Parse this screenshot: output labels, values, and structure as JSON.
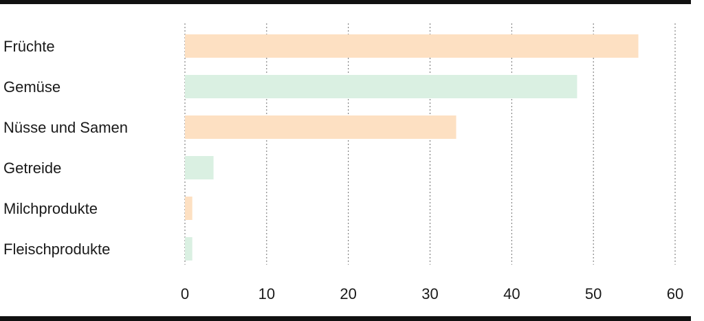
{
  "chart_data": {
    "type": "bar",
    "orientation": "horizontal",
    "categories": [
      "Früchte",
      "Gemüse",
      "Nüsse und Samen",
      "Getreide",
      "Milchprodukte",
      "Fleischprodukte"
    ],
    "values": [
      55.5,
      48,
      33.2,
      3.5,
      0.9,
      0.9
    ],
    "bar_colors": [
      "#fde0c2",
      "#daf0e2",
      "#fde0c2",
      "#daf0e2",
      "#fde0c2",
      "#daf0e2"
    ],
    "xlim": [
      0,
      60
    ],
    "xticks": [
      "0",
      "10",
      "20",
      "30",
      "40",
      "50",
      "60"
    ],
    "grid": "vertical-dotted",
    "title": "",
    "xlabel": "",
    "ylabel": ""
  }
}
